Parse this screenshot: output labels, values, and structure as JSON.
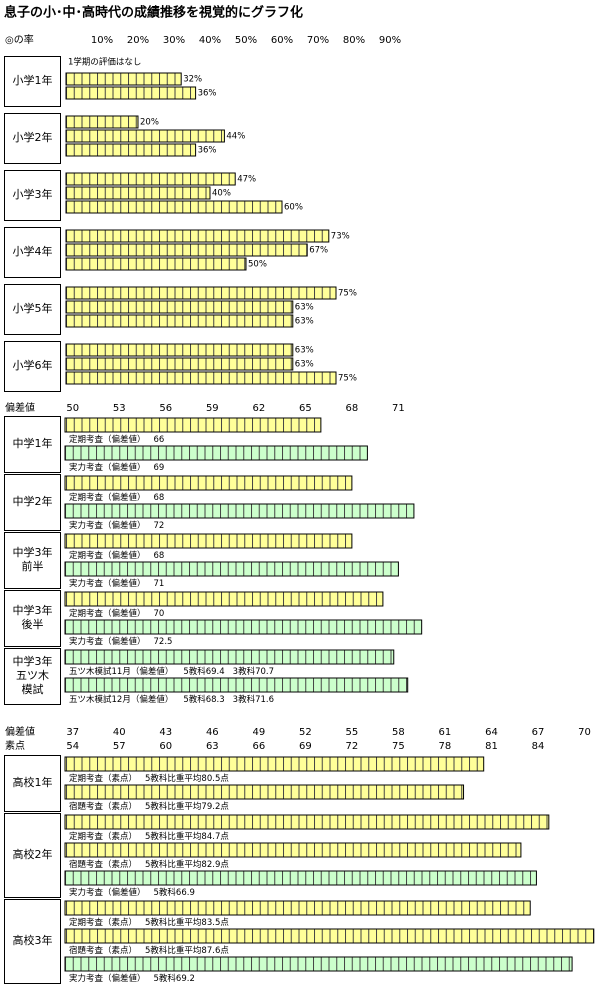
{
  "title": "息子の小･中･高時代の成績推移を視覚的にグラフ化",
  "chart_data": [
    {
      "type": "bar",
      "xlabel": "◎の率",
      "xlim": [
        0,
        100
      ],
      "xticks": [
        {
          "value": 10,
          "label": "10%"
        },
        {
          "value": 20,
          "label": "20%"
        },
        {
          "value": 30,
          "label": "30%"
        },
        {
          "value": 40,
          "label": "40%"
        },
        {
          "value": 50,
          "label": "50%"
        },
        {
          "value": 60,
          "label": "60%"
        },
        {
          "value": 70,
          "label": "70%"
        },
        {
          "value": 80,
          "label": "80%"
        },
        {
          "value": 90,
          "label": "90%"
        }
      ],
      "groups": [
        {
          "label": [
            "小学1年"
          ],
          "bars": [
            {
              "name": "1学期の評価はなし",
              "value": null
            },
            {
              "value": 32,
              "value_label": "32%",
              "color": "#ffff99"
            },
            {
              "value": 36,
              "value_label": "36%",
              "color": "#ffff99"
            }
          ]
        },
        {
          "label": [
            "小学2年"
          ],
          "bars": [
            {
              "value": 20,
              "value_label": "20%",
              "color": "#ffff99"
            },
            {
              "value": 44,
              "value_label": "44%",
              "color": "#ffff99"
            },
            {
              "value": 36,
              "value_label": "36%",
              "color": "#ffff99"
            }
          ]
        },
        {
          "label": [
            "小学3年"
          ],
          "bars": [
            {
              "value": 47,
              "value_label": "47%",
              "color": "#ffff99"
            },
            {
              "value": 40,
              "value_label": "40%",
              "color": "#ffff99"
            },
            {
              "value": 60,
              "value_label": "60%",
              "color": "#ffff99"
            }
          ]
        },
        {
          "label": [
            "小学4年"
          ],
          "bars": [
            {
              "value": 73,
              "value_label": "73%",
              "color": "#ffff99"
            },
            {
              "value": 67,
              "value_label": "67%",
              "color": "#ffff99"
            },
            {
              "value": 50,
              "value_label": "50%",
              "color": "#ffff99"
            }
          ]
        },
        {
          "label": [
            "小学5年"
          ],
          "bars": [
            {
              "value": 75,
              "value_label": "75%",
              "color": "#ffff99"
            },
            {
              "value": 63,
              "value_label": "63%",
              "color": "#ffff99"
            },
            {
              "value": 63,
              "value_label": "63%",
              "color": "#ffff99"
            }
          ]
        },
        {
          "label": [
            "小学6年"
          ],
          "bars": [
            {
              "value": 63,
              "value_label": "63%",
              "color": "#ffff99"
            },
            {
              "value": 63,
              "value_label": "63%",
              "color": "#ffff99"
            },
            {
              "value": 75,
              "value_label": "75%",
              "color": "#ffff99"
            }
          ]
        }
      ]
    },
    {
      "type": "bar",
      "xlabel": "偏差値",
      "xlim": [
        49.5,
        84
      ],
      "xticks": [
        50,
        53,
        56,
        59,
        62,
        65,
        68,
        71
      ],
      "xtick_colors": [
        "#c00000",
        "#000000",
        "#000000",
        "#000000",
        "#000000",
        "#000000",
        "#000000",
        "#000000"
      ],
      "groups": [
        {
          "label": [
            "中学1年"
          ],
          "bars": [
            {
              "name": "定期考査（偏差値）",
              "value": 66,
              "color": "#ffff99"
            },
            {
              "name": "実力考査（偏差値）",
              "value": 69,
              "color": "#ccffcc"
            }
          ]
        },
        {
          "label": [
            "中学2年"
          ],
          "bars": [
            {
              "name": "定期考査（偏差値）",
              "value": 68,
              "color": "#ffff99"
            },
            {
              "name": "実力考査（偏差値）",
              "value": 72,
              "color": "#ccffcc"
            }
          ]
        },
        {
          "label": [
            "中学3年",
            "前半"
          ],
          "bars": [
            {
              "name": "定期考査（偏差値）",
              "value": 68,
              "color": "#ffff99"
            },
            {
              "name": "実力考査（偏差値）",
              "value": 71,
              "color": "#ccffcc"
            }
          ]
        },
        {
          "label": [
            "中学3年",
            "後半"
          ],
          "bars": [
            {
              "name": "定期考査（偏差値）",
              "value": 70,
              "color": "#ffff99"
            },
            {
              "name": "実力考査（偏差値）",
              "value": 72.5,
              "color": "#ccffcc"
            }
          ]
        },
        {
          "label": [
            "中学3年",
            "五ツ木",
            "模試"
          ],
          "bars": [
            {
              "name": "五ツ木模試11月（偏差値）",
              "note": "5教科69.4",
              "value": 70.7,
              "value_label": "3教科70.7",
              "color": "#ccffcc"
            },
            {
              "name": "五ツ木模試12月（偏差値）",
              "note": "5教科68.3",
              "value": 71.6,
              "value_label": "3教科71.6",
              "color": "#ccffcc"
            }
          ]
        }
      ]
    },
    {
      "type": "bar",
      "xlabel": "素点",
      "xlim": [
        53.5,
        88
      ],
      "xticks": [
        54,
        57,
        60,
        63,
        66,
        69,
        72,
        75,
        78,
        81,
        84
      ],
      "x2label": "偏差値",
      "x2lim": [
        36.5,
        71
      ],
      "x2ticks": [
        37,
        40,
        43,
        46,
        49,
        52,
        55,
        58,
        61,
        64,
        67,
        70
      ],
      "x2tick_colors": [
        "#000000",
        "#000000",
        "#000000",
        "#000000",
        "#000000",
        "#c00000",
        "#000000",
        "#000000",
        "#000000",
        "#000000",
        "#000000",
        "#000000"
      ],
      "groups": [
        {
          "label": [
            "高校1年"
          ],
          "bars": [
            {
              "name": "定期考査（素点）",
              "value": 80.5,
              "value_label": "5教科比重平均80.5点",
              "color": "#ffff99"
            },
            {
              "name": "宿題考査（素点）",
              "value": 79.2,
              "value_label": "5教科比重平均79.2点",
              "color": "#ffff99"
            }
          ]
        },
        {
          "label": [
            "高校2年"
          ],
          "bars": [
            {
              "name": "定期考査（素点）",
              "value": 84.7,
              "value_label": "5教科比重平均84.7点",
              "color": "#ffff99"
            },
            {
              "name": "宿題考査（素点）",
              "value": 82.9,
              "value_label": "5教科比重平均82.9点",
              "color": "#ffff99"
            },
            {
              "name": "実力考査（偏差値）",
              "value": 66.9,
              "value_label": "5教科66.9",
              "axis": "x2",
              "color": "#ccffcc"
            }
          ]
        },
        {
          "label": [
            "高校3年"
          ],
          "bars": [
            {
              "name": "定期考査（素点）",
              "value": 83.5,
              "value_label": "5教科比重平均83.5点",
              "color": "#ffff99"
            },
            {
              "name": "宿題考査（素点）",
              "value": 87.6,
              "value_label": "5教科比重平均87.6点",
              "color": "#ffff99"
            },
            {
              "name": "実力考査（偏差値）",
              "value": 69.2,
              "value_label": "5教科69.2",
              "axis": "x2",
              "color": "#ccffcc"
            }
          ]
        }
      ]
    }
  ]
}
